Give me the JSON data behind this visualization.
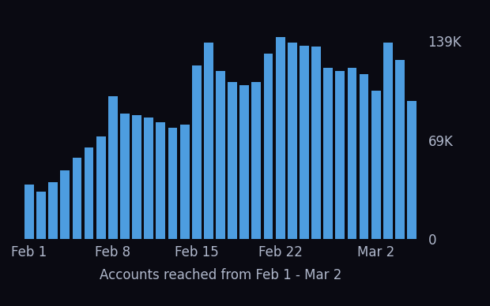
{
  "values": [
    38000,
    33000,
    40000,
    48000,
    57000,
    64000,
    72000,
    100000,
    88000,
    87000,
    85000,
    82000,
    78000,
    80000,
    122000,
    138000,
    118000,
    110000,
    108000,
    110000,
    130000,
    142000,
    138000,
    136000,
    135000,
    120000,
    118000,
    120000,
    116000,
    104000,
    138000,
    126000,
    97000
  ],
  "bar_color": "#4d9de0",
  "background_color": "#0a0a12",
  "text_color": "#b0b8cc",
  "xlabel": "Accounts reached from Feb 1 - Mar 2",
  "xtick_labels": [
    "Feb 1",
    "Feb 8",
    "Feb 15",
    "Feb 22",
    "Mar 2"
  ],
  "xtick_positions": [
    0,
    7,
    14,
    21,
    29
  ],
  "ytick_labels": [
    "0",
    "69K",
    "139K"
  ],
  "ytick_values": [
    0,
    69000,
    139000
  ],
  "ylim": [
    0,
    155000
  ],
  "xlabel_fontsize": 12,
  "tick_fontsize": 12,
  "bar_width": 0.78
}
